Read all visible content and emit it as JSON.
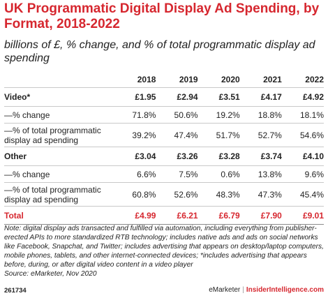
{
  "title": "UK Programmatic Digital Display Ad Spending, by Format, 2018-2022",
  "subtitle": "billions of £, % change, and % of total programmatic display ad spending",
  "chart_data": {
    "type": "table",
    "columns": [
      "2018",
      "2019",
      "2020",
      "2021",
      "2022"
    ],
    "sections": [
      {
        "name": "Video*",
        "values": [
          "£1.95",
          "£2.94",
          "£3.51",
          "£4.17",
          "£4.92"
        ],
        "rows": [
          {
            "label": "—% change",
            "values": [
              "71.8%",
              "50.6%",
              "19.2%",
              "18.8%",
              "18.1%"
            ]
          },
          {
            "label": "—% of total programmatic display ad spending",
            "values": [
              "39.2%",
              "47.4%",
              "51.7%",
              "52.7%",
              "54.6%"
            ]
          }
        ]
      },
      {
        "name": "Other",
        "values": [
          "£3.04",
          "£3.26",
          "£3.28",
          "£3.74",
          "£4.10"
        ],
        "rows": [
          {
            "label": "—% change",
            "values": [
              "6.6%",
              "7.5%",
              "0.6%",
              "13.8%",
              "9.6%"
            ]
          },
          {
            "label": "—% of total programmatic display ad spending",
            "values": [
              "60.8%",
              "52.6%",
              "48.3%",
              "47.3%",
              "45.4%"
            ]
          }
        ]
      }
    ],
    "total": {
      "label": "Total",
      "values": [
        "£4.99",
        "£6.21",
        "£6.79",
        "£7.90",
        "£9.01"
      ]
    }
  },
  "note": "Note: digital display ads transacted and fulfilled via automation, including everything from publisher-erected APIs to more standardized RTB technology; includes native ads and ads on social networks like Facebook, Snapchat, and Twitter; includes advertising that appears on desktop/laptop computers, mobile phones, tablets, and other internet-connected devices; *includes advertising that appears before, during, or after digital video content in a video player",
  "source": "Source: eMarketer, Nov 2020",
  "footer": {
    "chart_id": "261734",
    "brand_left": "eMarketer",
    "separator": "|",
    "brand_right": "InsiderIntelligence.com"
  },
  "colors": {
    "accent": "#d6272f",
    "text": "#222222",
    "rule": "#c9c9c9"
  }
}
